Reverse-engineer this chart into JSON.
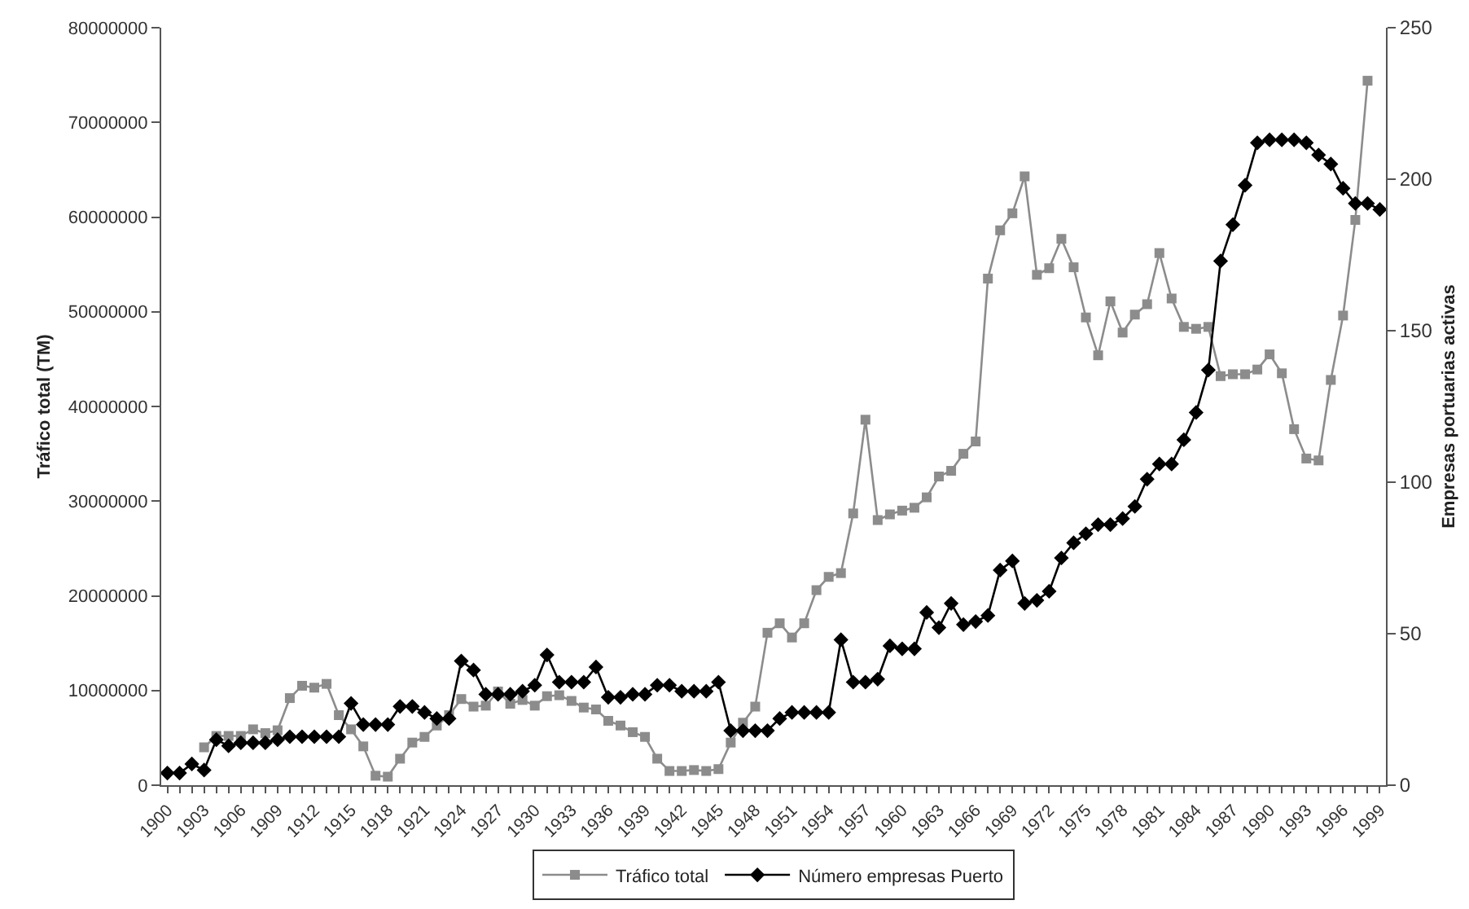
{
  "chart_data": {
    "type": "line",
    "ylabel": "Tráfico total (TM)",
    "y2label": "Empresas portuarias activas",
    "categories": [
      "1900",
      null,
      null,
      "1903",
      null,
      null,
      "1906",
      null,
      null,
      "1909",
      null,
      null,
      "1912",
      null,
      null,
      "1915",
      null,
      null,
      "1918",
      null,
      null,
      "1921",
      null,
      null,
      "1924",
      null,
      null,
      "1927",
      null,
      null,
      "1930",
      null,
      null,
      "1933",
      null,
      null,
      "1936",
      null,
      null,
      "1939",
      null,
      null,
      "1942",
      null,
      null,
      "1945",
      null,
      null,
      "1948",
      null,
      null,
      "1951",
      null,
      null,
      "1954",
      null,
      null,
      "1957",
      null,
      null,
      "1960",
      null,
      null,
      "1963",
      null,
      null,
      "1966",
      null,
      null,
      "1969",
      null,
      null,
      "1972",
      null,
      null,
      "1975",
      null,
      null,
      "1978",
      null,
      null,
      "1981",
      null,
      null,
      "1984",
      null,
      null,
      "1987",
      null,
      null,
      "1990",
      null,
      null,
      "1993",
      null,
      null,
      "1996",
      null,
      null,
      "1999"
    ],
    "series": [
      {
        "name": "Tráfico total",
        "color": "#8c8c8c",
        "marker": "square",
        "values": [
          null,
          null,
          null,
          4000000,
          5200000,
          5200000,
          5200000,
          5900000,
          5500000,
          5800000,
          9200000,
          10500000,
          10300000,
          10700000,
          7400000,
          5900000,
          4100000,
          1000000,
          900000,
          2800000,
          4500000,
          5100000,
          6300000,
          7400000,
          9100000,
          8300000,
          8400000,
          9900000,
          8600000,
          9000000,
          8400000,
          9400000,
          9500000,
          8900000,
          8200000,
          8000000,
          6800000,
          6300000,
          5600000,
          5100000,
          2800000,
          1500000,
          1500000,
          1600000,
          1500000,
          1700000,
          4500000,
          6600000,
          8300000,
          16100000,
          17100000,
          15600000,
          17100000,
          20600000,
          22000000,
          22400000,
          28700000,
          38600000,
          28000000,
          28600000,
          29000000,
          29300000,
          30400000,
          32600000,
          33200000,
          35000000,
          36300000,
          53500000,
          58600000,
          60400000,
          64300000,
          53900000,
          54600000,
          57700000,
          54700000,
          49400000,
          45400000,
          51100000,
          47800000,
          49700000,
          50800000,
          56200000,
          51400000,
          48400000,
          48200000,
          48400000,
          43200000,
          43400000,
          43400000,
          43900000,
          45500000,
          43500000,
          37600000,
          34500000,
          34300000,
          42800000,
          49600000,
          59700000,
          74400000,
          null
        ]
      },
      {
        "name": "Número empresas Puerto",
        "color": "#000000",
        "marker": "diamond",
        "axis": "y2",
        "values": [
          4,
          4,
          7,
          5,
          15,
          13,
          14,
          14,
          14,
          15,
          16,
          16,
          16,
          16,
          16,
          27,
          20,
          20,
          20,
          26,
          26,
          24,
          22,
          22,
          41,
          38,
          30,
          30,
          30,
          31,
          33,
          43,
          34,
          34,
          34,
          39,
          29,
          29,
          30,
          30,
          33,
          33,
          31,
          31,
          31,
          34,
          18,
          18,
          18,
          18,
          22,
          24,
          24,
          24,
          24,
          48,
          34,
          34,
          35,
          46,
          45,
          45,
          57,
          52,
          60,
          53,
          54,
          56,
          71,
          74,
          60,
          61,
          64,
          75,
          80,
          83,
          86,
          86,
          88,
          92,
          101,
          106,
          106,
          114,
          123,
          137,
          173,
          185,
          198,
          212,
          213,
          213,
          213,
          212,
          208,
          205,
          197,
          192,
          192,
          190
        ]
      }
    ],
    "ylim": [
      0,
      80000000
    ],
    "yticks": [
      0,
      10000000,
      20000000,
      30000000,
      40000000,
      50000000,
      60000000,
      70000000,
      80000000
    ],
    "y2lim": [
      0,
      250
    ],
    "y2ticks": [
      0,
      50,
      100,
      150,
      200,
      250
    ],
    "legend": "bottom",
    "line_style": "solid"
  }
}
